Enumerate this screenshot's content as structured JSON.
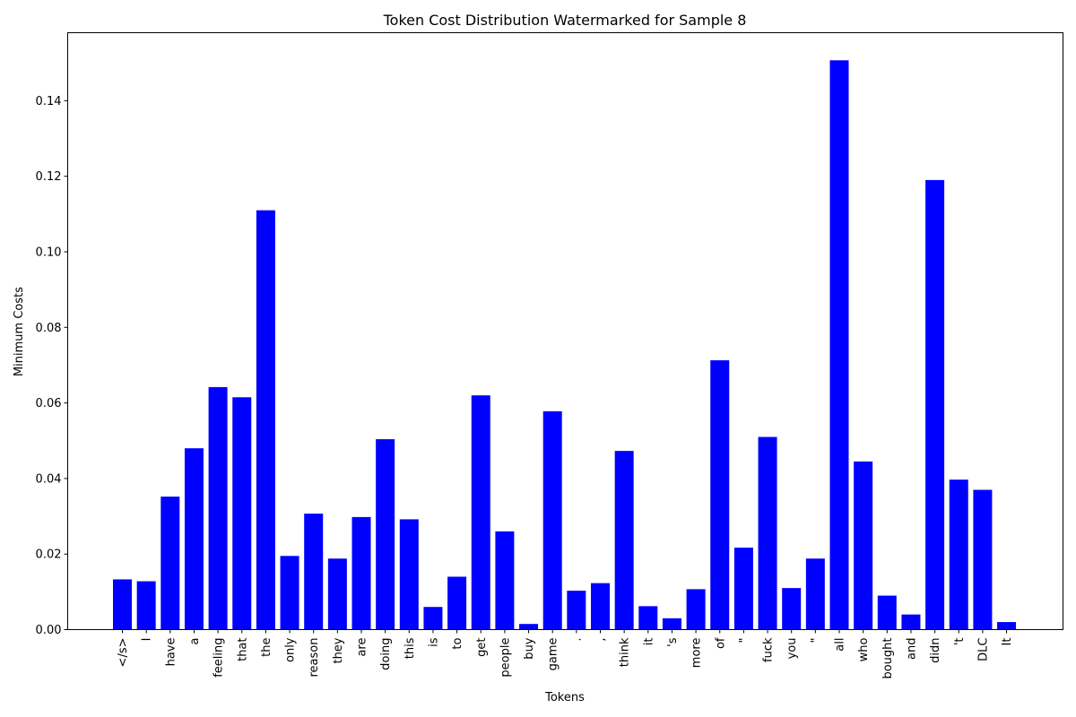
{
  "chart_data": {
    "type": "bar",
    "title": "Token Cost Distribution Watermarked for Sample 8",
    "xlabel": "Tokens",
    "ylabel": "Minimum Costs",
    "ylim": [
      0,
      0.158
    ],
    "yticks": [
      "0.00",
      "0.02",
      "0.04",
      "0.06",
      "0.08",
      "0.10",
      "0.12",
      "0.14"
    ],
    "grid": false,
    "bar_color": "#0000ff",
    "categories": [
      "</s>",
      "I",
      "have",
      "a",
      "feeling",
      "that",
      "the",
      "only",
      "reason",
      "they",
      "are",
      "doing",
      "this",
      "is",
      "to",
      "get",
      "people",
      "buy",
      "game",
      ".",
      ",",
      "think",
      "it",
      "'s",
      "more",
      "of",
      "\"",
      "fuck",
      "you",
      "\"",
      "all",
      "who",
      "bought",
      "and",
      "didn",
      "'t",
      "DLC",
      "It"
    ],
    "values": [
      0.0133,
      0.0128,
      0.0352,
      0.048,
      0.0642,
      0.0615,
      0.111,
      0.0195,
      0.0307,
      0.0188,
      0.0298,
      0.0504,
      0.0292,
      0.006,
      0.014,
      0.062,
      0.026,
      0.0015,
      0.0578,
      0.0103,
      0.0123,
      0.0473,
      0.0062,
      0.003,
      0.0107,
      0.0713,
      0.0217,
      0.051,
      0.011,
      0.0188,
      0.1507,
      0.0445,
      0.009,
      0.004,
      0.119,
      0.0397,
      0.037,
      0.002
    ]
  }
}
